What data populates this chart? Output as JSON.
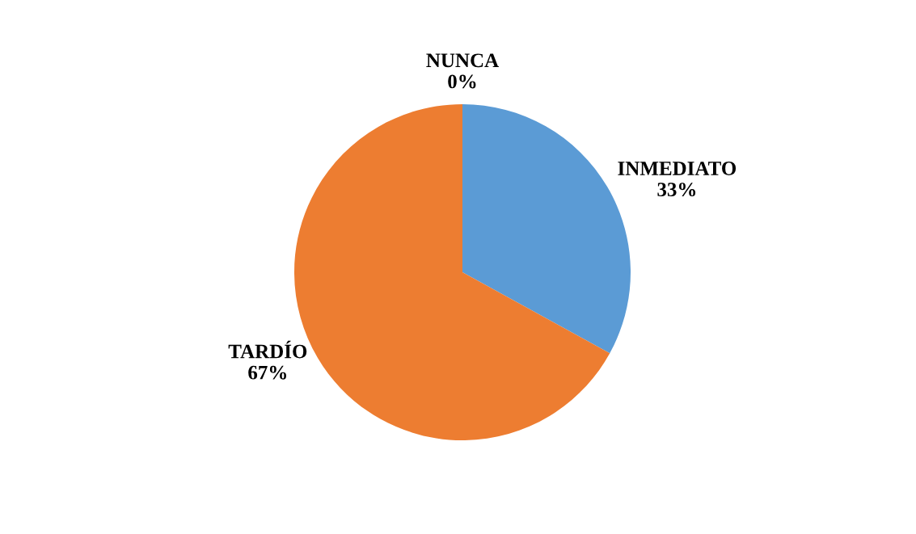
{
  "chart_data": {
    "type": "pie",
    "categories": [
      "INMEDIATO",
      "TARDÍO",
      "NUNCA"
    ],
    "values": [
      33,
      67,
      0
    ],
    "colors": [
      "#5b9bd5",
      "#ed7d31",
      "#a5a5a5"
    ],
    "value_labels": [
      "33%",
      "67%",
      "0%"
    ],
    "legend": false
  }
}
